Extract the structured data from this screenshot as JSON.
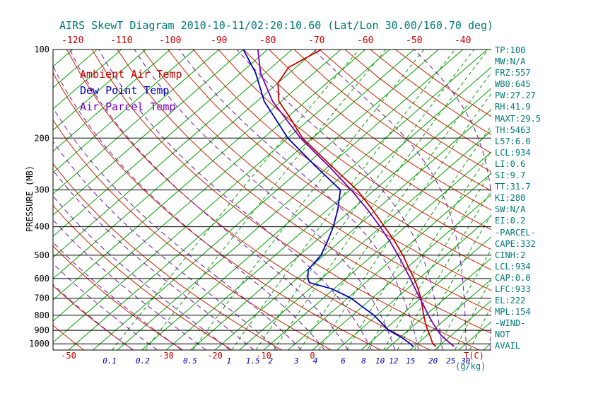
{
  "chart_data": {
    "type": "line",
    "projection": "skew-t-log-p",
    "title": "AIRS SkewT Diagram 2010-10-11/02:20:10.60 (Lat/Lon 30.00/160.70 deg)",
    "pressure_axis_label": "PRESSURE (MB)",
    "temp_unit_label": "T(C)",
    "mixing_ratio_unit_label": "(g/kg)",
    "axes": {
      "pressure_range_mb": [
        100,
        1050
      ],
      "pressure_log_scale": true,
      "pressure_ticks_mb": [
        100,
        200,
        300,
        400,
        500,
        600,
        700,
        800,
        900,
        1000
      ],
      "top_temp_ticks_c": [
        -120,
        -110,
        -100,
        -90,
        -80,
        -70,
        -60,
        -50,
        -40
      ],
      "bottom_temp_ticks_c": [
        -50,
        -30,
        -20,
        -10,
        0
      ]
    },
    "grid": {
      "isotherm_step_c": 5,
      "isotherm_range_c": [
        -160,
        60
      ],
      "dry_adiabat_theta_c": {
        "min": -60,
        "max": 150,
        "step": 10
      },
      "moist_adiabat_t1000_c": {
        "min": -40,
        "max": 40,
        "step": 5
      },
      "mixing_ratio_lines_gkg": [
        0.1,
        0.2,
        0.5,
        1,
        1.5,
        2,
        3,
        4,
        6,
        8,
        10,
        12,
        15,
        20,
        25,
        30
      ]
    },
    "colors": {
      "title": "#007878",
      "stats_text": "#007878",
      "isotherm": "#00a000",
      "mixing_ratio_line": "#00a000",
      "dry_adiabat": "#cc2200",
      "moist_adiabat": "#7711aa",
      "pressure_grid": "#000000",
      "pressure_labels": "#000000",
      "top_tick_labels": "#cc0000",
      "bottom_tick_labels": "#cc0000",
      "mixing_ratio_labels": "#0000bb"
    },
    "series": [
      {
        "name": "Ambient Air Temp",
        "color": "#cc0000",
        "points_p_t": [
          [
            1021,
            24.5
          ],
          [
            1000,
            23.2
          ],
          [
            950,
            21.2
          ],
          [
            900,
            19.0
          ],
          [
            850,
            16.8
          ],
          [
            800,
            14.6
          ],
          [
            750,
            12.4
          ],
          [
            700,
            10.0
          ],
          [
            650,
            7.2
          ],
          [
            600,
            4.0
          ],
          [
            550,
            0.2
          ],
          [
            500,
            -3.8
          ],
          [
            450,
            -8.6
          ],
          [
            400,
            -14.3
          ],
          [
            350,
            -20.8
          ],
          [
            300,
            -28.6
          ],
          [
            250,
            -39.2
          ],
          [
            200,
            -52.0
          ],
          [
            170,
            -59.5
          ],
          [
            150,
            -65.5
          ],
          [
            130,
            -70.0
          ],
          [
            115,
            -71.5
          ],
          [
            100,
            -69.0
          ]
        ]
      },
      {
        "name": "Dew Point Temp",
        "color": "#0000bb",
        "points_p_t": [
          [
            1021,
            19.8
          ],
          [
            1000,
            18.6
          ],
          [
            950,
            15.2
          ],
          [
            900,
            11.0
          ],
          [
            850,
            7.8
          ],
          [
            800,
            4.4
          ],
          [
            750,
            0.2
          ],
          [
            700,
            -4.3
          ],
          [
            650,
            -10.5
          ],
          [
            620,
            -16.5
          ],
          [
            600,
            -17.8
          ],
          [
            560,
            -19.8
          ],
          [
            500,
            -20.6
          ],
          [
            450,
            -22.5
          ],
          [
            400,
            -24.8
          ],
          [
            350,
            -27.9
          ],
          [
            300,
            -32.0
          ],
          [
            250,
            -42.5
          ],
          [
            200,
            -55.0
          ],
          [
            150,
            -68.5
          ],
          [
            120,
            -77.0
          ],
          [
            100,
            -85.0
          ]
        ]
      },
      {
        "name": "Air Parcel Temp",
        "color": "#7700bb",
        "points_p_t": [
          [
            1021,
            28.2
          ],
          [
            1000,
            26.9
          ],
          [
            950,
            23.8
          ],
          [
            934,
            22.8
          ],
          [
            900,
            21.0
          ],
          [
            850,
            18.3
          ],
          [
            800,
            15.6
          ],
          [
            750,
            12.8
          ],
          [
            700,
            9.8
          ],
          [
            650,
            6.6
          ],
          [
            600,
            3.2
          ],
          [
            550,
            -0.6
          ],
          [
            500,
            -4.8
          ],
          [
            450,
            -9.6
          ],
          [
            400,
            -15.2
          ],
          [
            350,
            -21.8
          ],
          [
            300,
            -29.8
          ],
          [
            250,
            -39.8
          ],
          [
            200,
            -52.4
          ],
          [
            150,
            -66.8
          ],
          [
            120,
            -76.0
          ],
          [
            100,
            -82.0
          ]
        ]
      }
    ]
  },
  "stats_panel": {
    "lines": [
      "TP:100",
      "MW:N/A",
      "FRZ:557",
      "WB0:645",
      "PW:27.27",
      "RH:41.9",
      "MAXT:29.5",
      "TH:5463",
      "L57:6.0",
      "LCL:934",
      "LI:0.6",
      "SI:9.7",
      "TT:31.7",
      "KI:280",
      "SW:N/A",
      "EI:0.2",
      "-PARCEL-",
      "CAPE:332",
      "CINH:2",
      "LCL:934",
      "CAP:0.0",
      "LFC:933",
      "EL:222",
      "MPL:154",
      "-WIND-",
      "NOT",
      "AVAIL"
    ]
  }
}
